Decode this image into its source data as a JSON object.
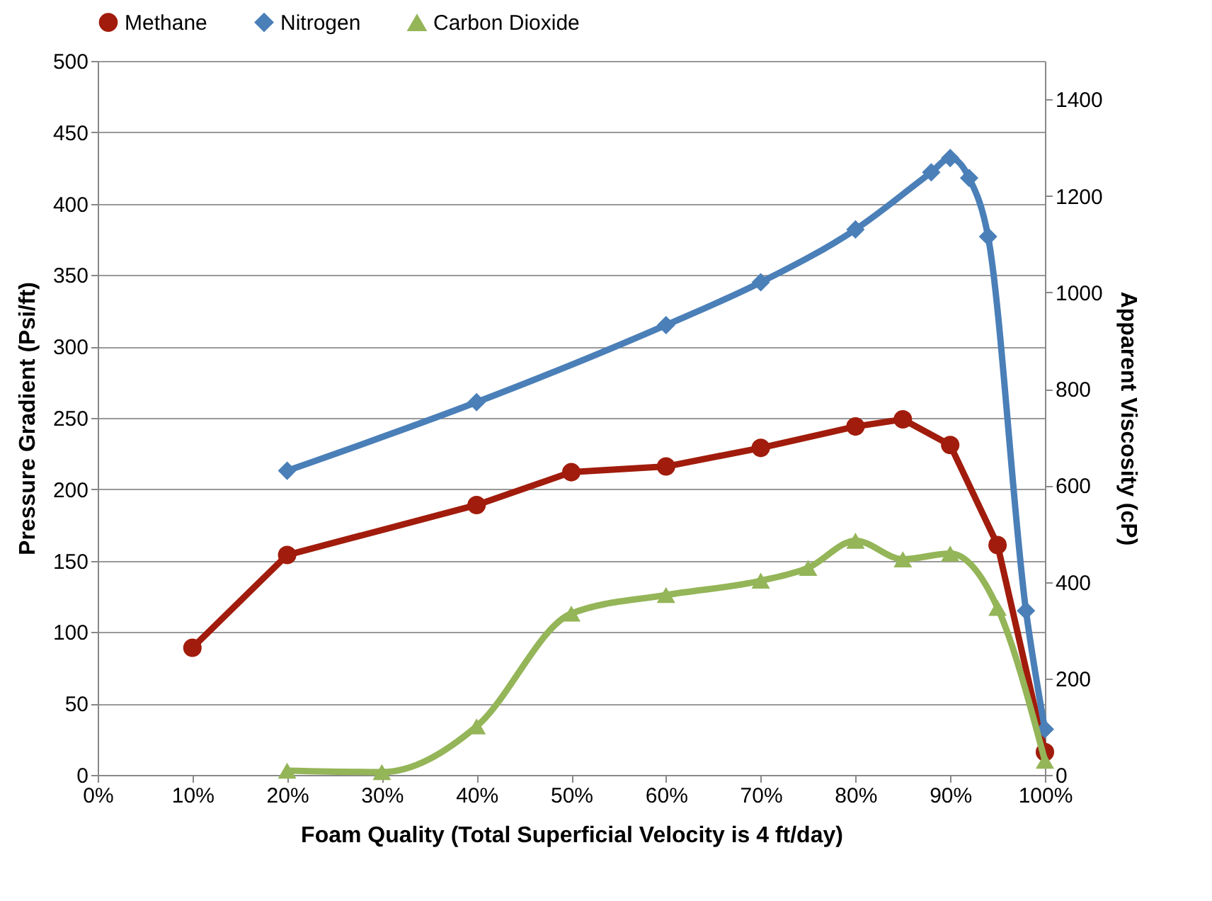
{
  "chart_data": {
    "type": "line",
    "xlabel": "Foam Quality (Total Superficial Velocity is 4 ft/day)",
    "ylabel": "Pressure Gradient (Psi/ft)",
    "y2label": "Apparent Viscosity (cP)",
    "xlim": [
      0,
      100
    ],
    "xticks": [
      {
        "value": 0,
        "label": "0%"
      },
      {
        "value": 10,
        "label": "10%"
      },
      {
        "value": 20,
        "label": "20%"
      },
      {
        "value": 30,
        "label": "30%"
      },
      {
        "value": 40,
        "label": "40%"
      },
      {
        "value": 50,
        "label": "50%"
      },
      {
        "value": 60,
        "label": "60%"
      },
      {
        "value": 70,
        "label": "70%"
      },
      {
        "value": 80,
        "label": "80%"
      },
      {
        "value": 90,
        "label": "90%"
      },
      {
        "value": 100,
        "label": "100%"
      }
    ],
    "ylim": [
      0,
      500
    ],
    "yticks": [
      0,
      50,
      100,
      150,
      200,
      250,
      300,
      350,
      400,
      450,
      500
    ],
    "y2lim": [
      0,
      1480
    ],
    "y2ticks": [
      0,
      200,
      400,
      600,
      800,
      1000,
      1200,
      1400
    ],
    "grid": "y",
    "legend": "top",
    "series": [
      {
        "name": "Methane",
        "color": "#a11c0c",
        "marker": "circle",
        "line_style": "solid",
        "x": [
          10,
          20,
          40,
          50,
          60,
          70,
          80,
          85,
          90,
          95,
          100
        ],
        "values": [
          89,
          154,
          189,
          212,
          216,
          229,
          244,
          249,
          231,
          161,
          16
        ]
      },
      {
        "name": "Nitrogen",
        "color": "#4a7fb8",
        "marker": "diamond",
        "line_style": "solid",
        "x": [
          20,
          40,
          60,
          70,
          80,
          88,
          90,
          92,
          94,
          98,
          100
        ],
        "values": [
          213,
          261,
          315,
          345,
          382,
          422,
          432,
          418,
          377,
          115,
          32
        ]
      },
      {
        "name": "Carbon Dioxide",
        "color": "#94b558",
        "marker": "triangle",
        "line_style": "solid",
        "x": [
          20,
          30,
          40,
          50,
          60,
          70,
          75,
          80,
          85,
          90,
          95,
          100
        ],
        "values": [
          3,
          2,
          34,
          113,
          126,
          136,
          145,
          164,
          151,
          155,
          117,
          10
        ]
      }
    ]
  }
}
